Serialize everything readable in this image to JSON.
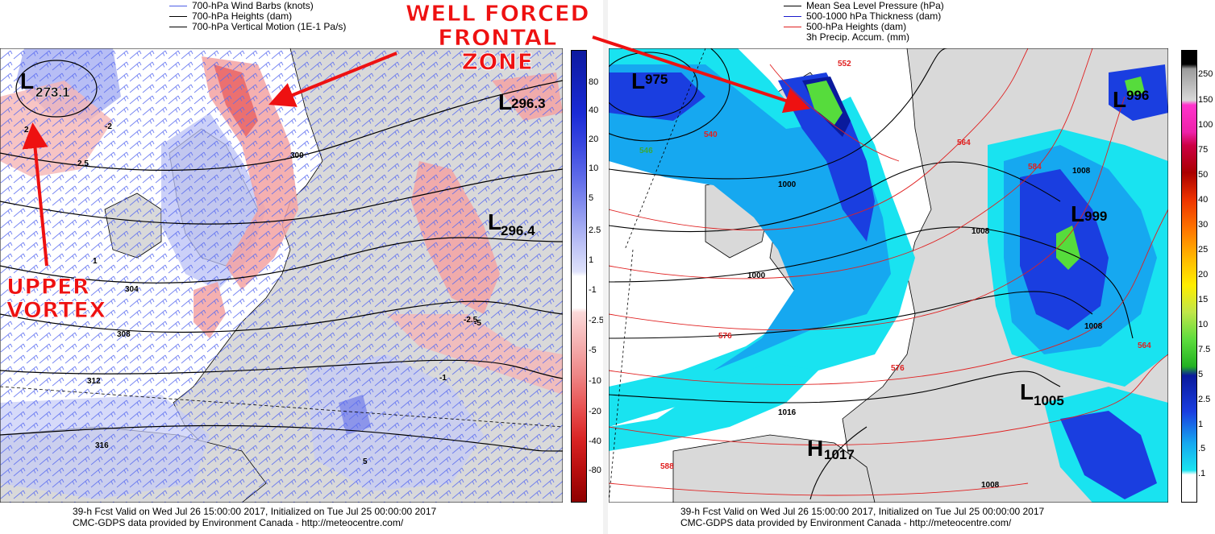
{
  "left_panel": {
    "legend": [
      {
        "label": "700-hPa Wind Barbs  (knots)",
        "color": "#4d5fe6"
      },
      {
        "label": "700-hPa Heights (dam)",
        "color": "#000000"
      },
      {
        "label": "700-hPa Vertical Motion (1E-1 Pa/s)",
        "color": "#000000"
      }
    ],
    "lows": [
      {
        "letter": "L",
        "value": "273.1"
      },
      {
        "letter": "L",
        "value": "296.3"
      },
      {
        "letter": "L",
        "value": "296.4"
      }
    ],
    "contour_labels": [
      "300",
      "304",
      "308",
      "312",
      "316",
      "2.5",
      "-2.5",
      "-5",
      "5",
      "-1",
      "1",
      "-2",
      "2"
    ],
    "colorbar": [
      "80",
      "40",
      "20",
      "10",
      "5",
      "2.5",
      "1",
      "-1",
      "-2.5",
      "-5",
      "-10",
      "-20",
      "-40",
      "-80"
    ],
    "footer_line1": "39-h Fcst Valid on Wed Jul 26 15:00:00 2017, Initialized on Tue Jul 25 00:00:00 2017",
    "footer_line2": "CMC-GDPS data provided by Environment Canada - http://meteocentre.com/"
  },
  "right_panel": {
    "legend": [
      {
        "label": "Mean Sea Level Pressure (hPa)",
        "color": "#000000"
      },
      {
        "label": "500-1000 hPa Thickness (dam)",
        "color": "#1a1acc"
      },
      {
        "label": "500-hPa Heights (dam)",
        "color": "#e02020"
      },
      {
        "label": "3h Precip. Accum. (mm)",
        "color": ""
      }
    ],
    "lows": [
      {
        "letter": "L",
        "value": "975"
      },
      {
        "letter": "L",
        "value": "996"
      },
      {
        "letter": "L",
        "value": "999"
      },
      {
        "letter": "L",
        "value": "1005"
      }
    ],
    "highs": [
      {
        "letter": "H",
        "value": "1017"
      }
    ],
    "isobar_labels": [
      "1000",
      "1000",
      "1008",
      "1008",
      "1008",
      "1016",
      "1008"
    ],
    "height_labels": [
      "540",
      "546",
      "564",
      "576",
      "576",
      "584",
      "588",
      "552",
      "564"
    ],
    "colorbar": [
      "250",
      "150",
      "100",
      "75",
      "50",
      "40",
      "30",
      "25",
      "20",
      "15",
      "10",
      "7.5",
      "5",
      "2.5",
      "1",
      ".5",
      ".1"
    ],
    "footer_line1": "39-h Fcst Valid on Wed Jul 26 15:00:00 2017, Initialized on Tue Jul 25 00:00:00 2017",
    "footer_line2": "CMC-GDPS data provided by Environment Canada - http://meteocentre.com/"
  },
  "annotations": {
    "frontal_zone_line1": "WELL FORCED",
    "frontal_zone_line2": "FRONTAL ZONE",
    "vortex_line1": "UPPER",
    "vortex_line2": "VORTEX"
  },
  "colors": {
    "land": "#d9d9d9",
    "ocean": "#ffffff",
    "annotation_red": "#ee1111",
    "barb_blue": "#4d5fe6"
  }
}
